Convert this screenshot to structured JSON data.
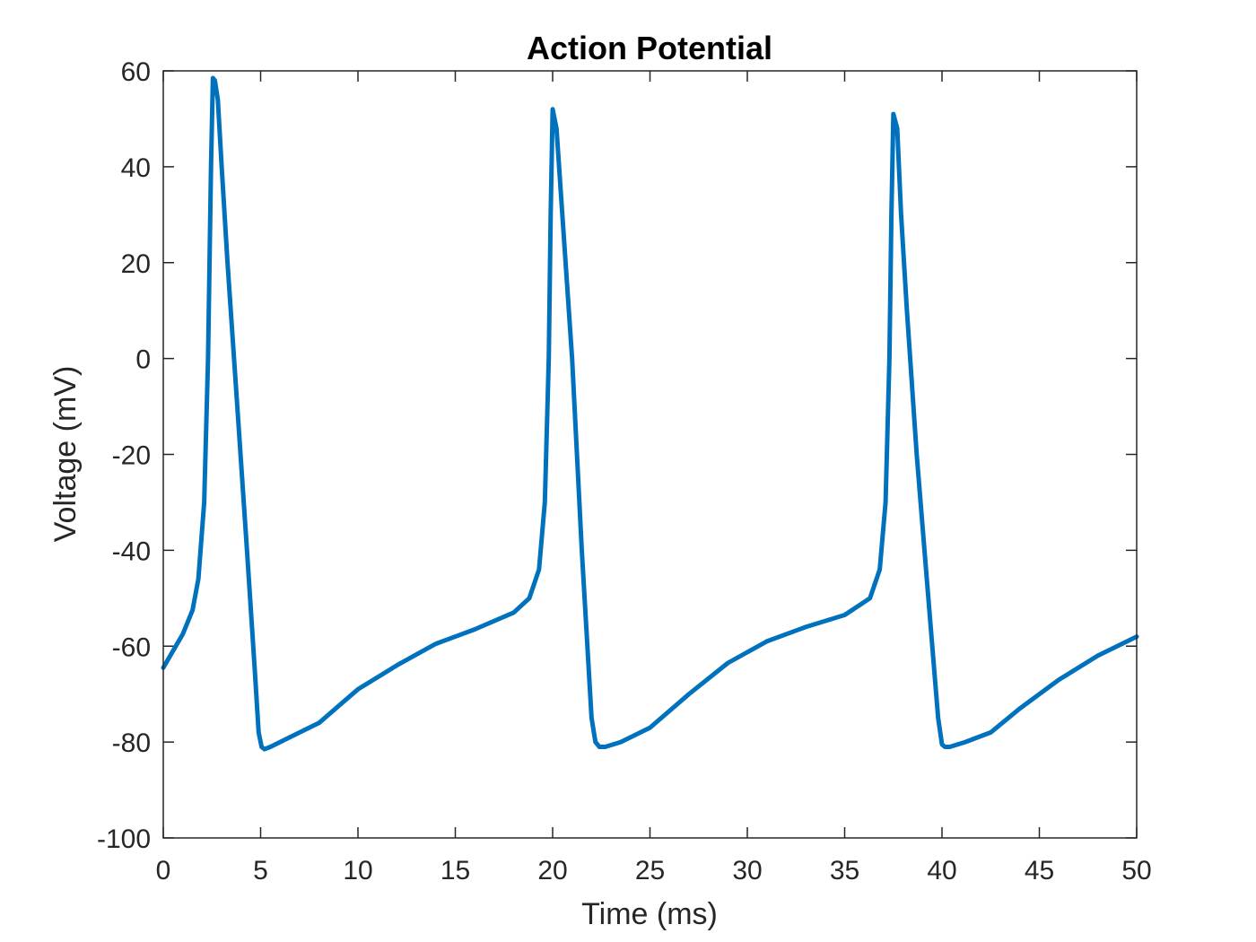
{
  "chart_data": {
    "type": "line",
    "title": "Action Potential",
    "xlabel": "Time (ms)",
    "ylabel": "Voltage (mV)",
    "xlim": [
      0,
      50
    ],
    "ylim": [
      -100,
      60
    ],
    "xticks": [
      0,
      5,
      10,
      15,
      20,
      25,
      30,
      35,
      40,
      45,
      50
    ],
    "yticks": [
      -100,
      -80,
      -60,
      -40,
      -20,
      0,
      20,
      40,
      60
    ],
    "xtick_labels": [
      "0",
      "5",
      "10",
      "15",
      "20",
      "25",
      "30",
      "35",
      "40",
      "45",
      "50"
    ],
    "ytick_labels": [
      "-100",
      "-80",
      "-60",
      "-40",
      "-20",
      "0",
      "20",
      "40",
      "60"
    ],
    "grid": false,
    "colors": {
      "line": "#0072BD",
      "axis": "#262626"
    },
    "series": [
      {
        "x": [
          0,
          0.5,
          1,
          1.5,
          1.8,
          2.1,
          2.3,
          2.45,
          2.55,
          2.65,
          2.8,
          3.0,
          3.3,
          3.8,
          4.3,
          4.7,
          4.9,
          5.05,
          5.2,
          5.5,
          6.5,
          8,
          10,
          12,
          14,
          16,
          18,
          18.8,
          19.3,
          19.6,
          19.8,
          19.9,
          20.0,
          20.2,
          20.5,
          21.0,
          21.5,
          22.0,
          22.2,
          22.4,
          22.7,
          23.5,
          25,
          27,
          29,
          31,
          33,
          35,
          36.3,
          36.8,
          37.1,
          37.3,
          37.4,
          37.5,
          37.7,
          37.9,
          38.2,
          38.7,
          39.3,
          39.8,
          40.0,
          40.15,
          40.4,
          41.2,
          42.5,
          44,
          46,
          48,
          50
        ],
        "y": [
          -64.5,
          -61,
          -57.5,
          -52.5,
          -46,
          -30,
          0,
          40,
          58.5,
          58,
          54,
          40,
          20,
          -10,
          -40,
          -65,
          -78,
          -81,
          -81.5,
          -81,
          -79,
          -76,
          -69,
          -64,
          -59.5,
          -56.5,
          -53,
          -50,
          -44,
          -30,
          0,
          30,
          52,
          48,
          30,
          0,
          -40,
          -75,
          -80,
          -81,
          -81,
          -80,
          -77,
          -70,
          -63.5,
          -59,
          -56,
          -53.5,
          -50,
          -44,
          -30,
          0,
          30,
          51,
          48,
          30,
          10,
          -20,
          -50,
          -75,
          -80.5,
          -81,
          -81,
          -80,
          -78,
          -73,
          -67,
          -62,
          -58
        ]
      }
    ]
  }
}
